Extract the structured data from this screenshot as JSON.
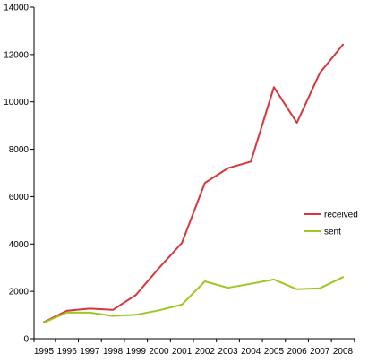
{
  "chart_data": {
    "type": "line",
    "title": "",
    "xlabel": "",
    "ylabel": "",
    "x": [
      "1995",
      "1996",
      "1997",
      "1998",
      "1999",
      "2000",
      "2001",
      "2002",
      "2003",
      "2004",
      "2005",
      "2006",
      "2007",
      "2008"
    ],
    "ylim": [
      0,
      14000
    ],
    "yticks": [
      0,
      2000,
      4000,
      6000,
      8000,
      10000,
      12000,
      14000
    ],
    "grid": false,
    "legend_position": "right",
    "series": [
      {
        "name": "received",
        "color": "#d9363b",
        "values": [
          700,
          1180,
          1270,
          1220,
          1850,
          2980,
          4050,
          6580,
          7200,
          7480,
          10620,
          9120,
          11230,
          12420
        ]
      },
      {
        "name": "sent",
        "color": "#9dc81f",
        "values": [
          680,
          1110,
          1100,
          960,
          1010,
          1200,
          1440,
          2420,
          2150,
          2320,
          2500,
          2090,
          2130,
          2600
        ]
      }
    ]
  }
}
